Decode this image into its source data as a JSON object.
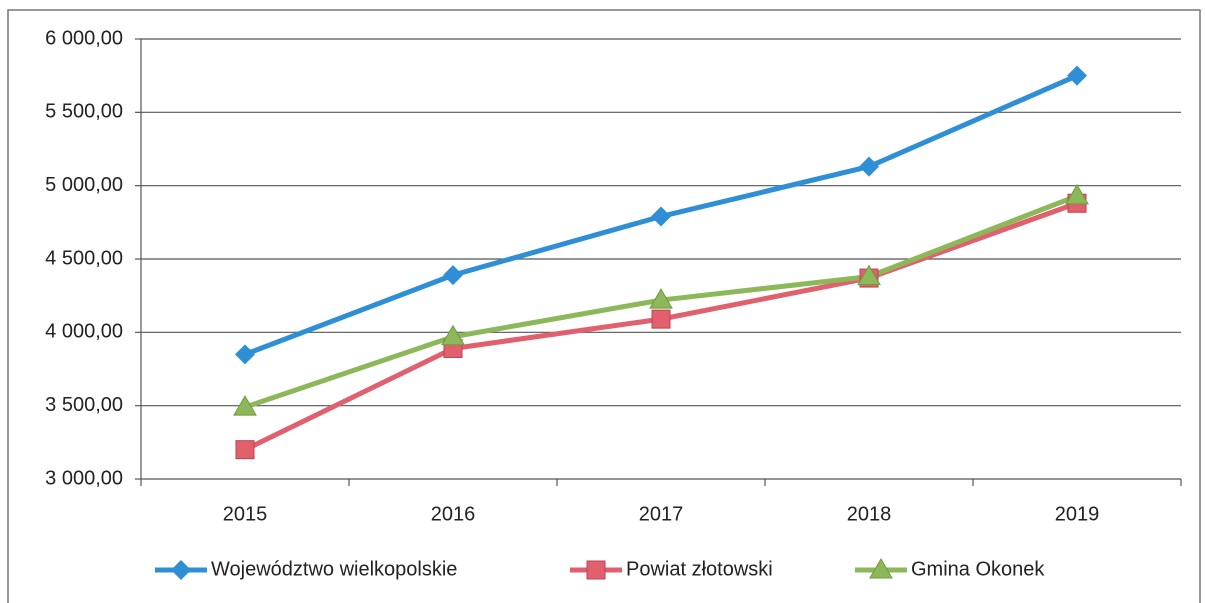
{
  "chart_data": {
    "type": "line",
    "categories": [
      "2015",
      "2016",
      "2017",
      "2018",
      "2019"
    ],
    "series": [
      {
        "name": "Województwo wielkopolskie",
        "color": "#2e8fd6",
        "marker": "diamond",
        "values": [
          3850,
          4390,
          4790,
          5130,
          5750
        ]
      },
      {
        "name": "Powiat złotowski",
        "color": "#e0606e",
        "marker": "square",
        "values": [
          3200,
          3890,
          4090,
          4370,
          4880
        ]
      },
      {
        "name": "Gmina Okonek",
        "color": "#8db85a",
        "marker": "triangle",
        "values": [
          3490,
          3970,
          4220,
          4380,
          4930
        ]
      }
    ],
    "ylim": [
      3000,
      6000
    ],
    "yticks": [
      {
        "value": 3000,
        "label": "3 000,00"
      },
      {
        "value": 3500,
        "label": "3 500,00"
      },
      {
        "value": 4000,
        "label": "4 000,00"
      },
      {
        "value": 4500,
        "label": "4 500,00"
      },
      {
        "value": 5000,
        "label": "5 000,00"
      },
      {
        "value": 5500,
        "label": "5 500,00"
      },
      {
        "value": 6000,
        "label": "6 000,00"
      }
    ],
    "grid": true,
    "legend": "bottom"
  }
}
